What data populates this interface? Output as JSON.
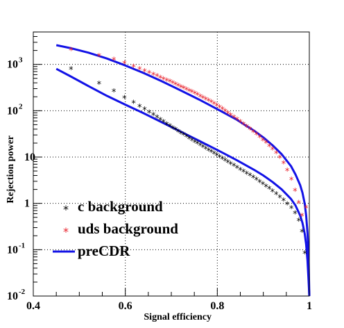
{
  "chart_data": {
    "type": "scatter",
    "xlabel": "Signal efficiency",
    "ylabel": "Rejection power",
    "xlim": [
      0.4,
      1.0
    ],
    "ylim": [
      0.01,
      5000
    ],
    "yscale": "log",
    "grid": true,
    "legend_position": "bottom-left",
    "x_ticks": [
      "0.4",
      "0.6",
      "0.8",
      "1"
    ],
    "y_ticks": [
      {
        "base": "10",
        "exp": "-2"
      },
      {
        "base": "10",
        "exp": "-1"
      },
      {
        "base": "1",
        "exp": ""
      },
      {
        "base": "10",
        "exp": ""
      },
      {
        "base": "10",
        "exp": "2"
      },
      {
        "base": "10",
        "exp": "3"
      }
    ],
    "series": [
      {
        "name": "c background",
        "marker": "*",
        "color": "#000000",
        "x": [
          0.482,
          0.543,
          0.575,
          0.598,
          0.618,
          0.631,
          0.642,
          0.652,
          0.661,
          0.669,
          0.676,
          0.683,
          0.69,
          0.697,
          0.703,
          0.709,
          0.715,
          0.721,
          0.727,
          0.733,
          0.739,
          0.745,
          0.751,
          0.757,
          0.763,
          0.769,
          0.775,
          0.781,
          0.787,
          0.793,
          0.799,
          0.805,
          0.811,
          0.817,
          0.823,
          0.829,
          0.836,
          0.843,
          0.85,
          0.857,
          0.864,
          0.871,
          0.878,
          0.885,
          0.892,
          0.899,
          0.906,
          0.913,
          0.92,
          0.928,
          0.936,
          0.944,
          0.952,
          0.961,
          0.969,
          0.977,
          0.984,
          0.99
        ],
        "y": [
          800,
          390,
          265,
          190,
          150,
          125,
          108,
          93,
          82,
          73,
          65,
          58,
          52,
          47,
          43,
          39.5,
          36,
          33,
          30.5,
          28,
          25.5,
          23.5,
          21.5,
          19.8,
          18.3,
          16.8,
          15.5,
          14.2,
          13.1,
          12.0,
          11.1,
          10.2,
          9.4,
          8.6,
          7.9,
          7.2,
          6.6,
          6.0,
          5.4,
          4.9,
          4.45,
          4.05,
          3.65,
          3.3,
          2.95,
          2.65,
          2.35,
          2.1,
          1.85,
          1.6,
          1.38,
          1.17,
          0.98,
          0.8,
          0.62,
          0.43,
          0.25,
          0.085
        ]
      },
      {
        "name": "uds background",
        "marker": "*",
        "color": "#e8202a",
        "x": [
          0.482,
          0.543,
          0.575,
          0.598,
          0.618,
          0.631,
          0.642,
          0.652,
          0.661,
          0.669,
          0.676,
          0.683,
          0.69,
          0.697,
          0.703,
          0.709,
          0.715,
          0.721,
          0.727,
          0.733,
          0.739,
          0.745,
          0.751,
          0.757,
          0.763,
          0.769,
          0.775,
          0.781,
          0.787,
          0.793,
          0.799,
          0.805,
          0.811,
          0.817,
          0.823,
          0.829,
          0.836,
          0.843,
          0.85,
          0.857,
          0.864,
          0.871,
          0.878,
          0.885,
          0.892,
          0.899,
          0.906,
          0.913,
          0.92,
          0.928,
          0.936,
          0.944,
          0.952,
          0.961,
          0.969,
          0.977,
          0.984,
          0.993
        ],
        "y": [
          2080,
          1540,
          1280,
          1080,
          900,
          800,
          725,
          660,
          610,
          565,
          525,
          490,
          458,
          428,
          400,
          375,
          352,
          330,
          310,
          290,
          272,
          255,
          238,
          222,
          207,
          193,
          180,
          167,
          155,
          143,
          132,
          121,
          110,
          100,
          90,
          81,
          73,
          65.5,
          58.5,
          52,
          46,
          40.5,
          35.5,
          31,
          27,
          23.5,
          20.5,
          17.5,
          14.8,
          12.3,
          9.8,
          7.4,
          5.2,
          3.3,
          1.9,
          1.05,
          0.55,
          0.82
        ]
      },
      {
        "name": "preCDR",
        "marker": "line",
        "color": "#1212e6",
        "segments": [
          {
            "x": [
              0.45,
              0.48,
              0.52,
              0.56,
              0.6,
              0.64,
              0.68,
              0.72,
              0.76,
              0.8,
              0.84,
              0.88,
              0.9,
              0.92,
              0.94,
              0.96,
              0.97,
              0.98,
              0.985,
              0.99,
              0.993,
              0.996,
              0.998,
              1.0
            ],
            "y": [
              800,
              560,
              340,
              210,
              135,
              88,
              56,
              35.5,
              22.5,
              14.2,
              8.8,
              5.3,
              4.0,
              2.9,
              2.0,
              1.25,
              0.9,
              0.55,
              0.38,
              0.22,
              0.13,
              0.06,
              0.025,
              0.01
            ]
          },
          {
            "x": [
              0.45,
              0.48,
              0.52,
              0.56,
              0.6,
              0.64,
              0.68,
              0.72,
              0.76,
              0.8,
              0.84,
              0.88,
              0.9,
              0.92,
              0.94,
              0.96,
              0.97,
              0.98,
              0.985,
              0.99,
              0.993,
              0.996,
              0.998,
              1.0
            ],
            "y": [
              2600,
              2260,
              1790,
              1340,
              950,
              650,
              430,
              275,
              175,
              108,
              66,
              37,
              26.5,
              18,
              11.5,
              6.4,
              4.2,
              2.5,
              1.7,
              0.98,
              0.55,
              0.24,
              0.09,
              0.01
            ]
          }
        ]
      }
    ]
  }
}
